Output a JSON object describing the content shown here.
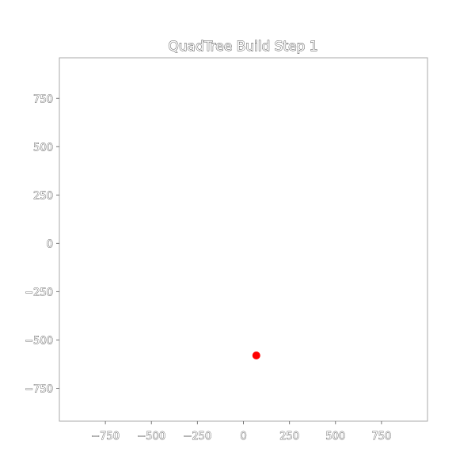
{
  "chart_data": {
    "type": "scatter",
    "title": "QuadTree Build Step 1",
    "xlabel": "",
    "ylabel": "",
    "xlim": [
      -1000,
      1000
    ],
    "ylim": [
      -920,
      960
    ],
    "grid": false,
    "x_ticks": [
      -750,
      -500,
      -250,
      0,
      250,
      500,
      750
    ],
    "x_tick_labels": [
      "−750",
      "−500",
      "−250",
      "0",
      "250",
      "500",
      "750"
    ],
    "y_ticks": [
      750,
      500,
      250,
      0,
      -250,
      -500,
      -750
    ],
    "y_tick_labels": [
      "750",
      "500",
      "250",
      "0",
      "−250",
      "−500",
      "−750"
    ],
    "series": [
      {
        "points": [
          {
            "x": 70,
            "y": -580
          }
        ],
        "color": "#ff0000"
      }
    ],
    "frame_color": "#aaaaaa"
  }
}
